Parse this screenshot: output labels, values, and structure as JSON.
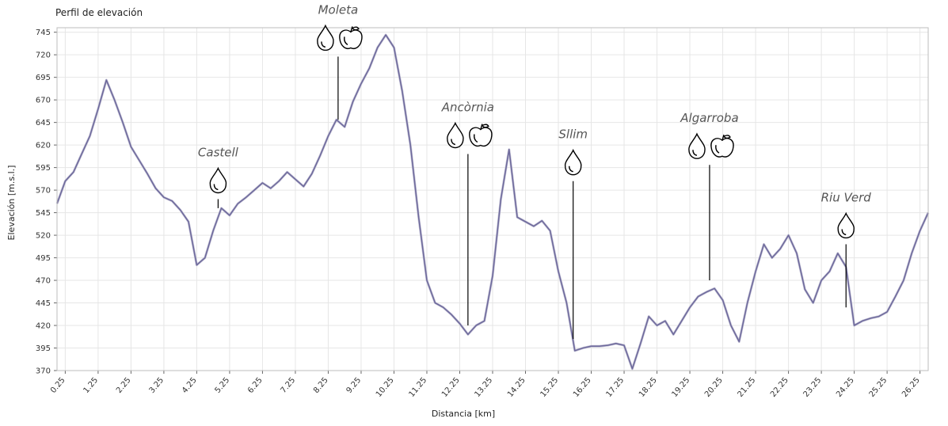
{
  "chart_data": {
    "type": "line",
    "title": "Perfil de elevación",
    "xlabel": "Distancia [km]",
    "ylabel": "Elevación [m.s.l.]",
    "xlim": [
      0,
      26.5
    ],
    "ylim": [
      370,
      750
    ],
    "grid": true,
    "yticks": [
      "370",
      "395",
      "420",
      "445",
      "470",
      "495",
      "520",
      "545",
      "570",
      "595",
      "620",
      "645",
      "670",
      "695",
      "720",
      "745"
    ],
    "xticks": [
      "0.25",
      "1.25",
      "2.25",
      "3.25",
      "4.25",
      "5.25",
      "6.25",
      "7.25",
      "8.25",
      "9.25",
      "10.25",
      "11.25",
      "12.25",
      "13.25",
      "14.25",
      "15.25",
      "16.25",
      "17.25",
      "18.25",
      "19.25",
      "20.25",
      "21.25",
      "22.25",
      "23.25",
      "24.25",
      "25.25",
      "26.25"
    ],
    "series": [
      {
        "color": "#6e6a9c",
        "x": [
          0,
          0.25,
          0.5,
          0.75,
          1.0,
          1.25,
          1.5,
          1.75,
          2.0,
          2.25,
          2.5,
          2.75,
          3.0,
          3.25,
          3.5,
          3.75,
          4.0,
          4.25,
          4.5,
          4.75,
          5.0,
          5.25,
          5.5,
          5.75,
          6.0,
          6.25,
          6.5,
          6.75,
          7.0,
          7.25,
          7.5,
          7.75,
          8.0,
          8.25,
          8.5,
          8.75,
          9.0,
          9.25,
          9.5,
          9.75,
          10.0,
          10.25,
          10.5,
          10.75,
          11.0,
          11.25,
          11.5,
          11.75,
          12.0,
          12.25,
          12.5,
          12.75,
          13.0,
          13.25,
          13.5,
          13.75,
          14.0,
          14.25,
          14.5,
          14.75,
          15.0,
          15.25,
          15.5,
          15.75,
          16.0,
          16.25,
          16.5,
          16.75,
          17.0,
          17.25,
          17.5,
          17.75,
          18.0,
          18.25,
          18.5,
          18.75,
          19.0,
          19.25,
          19.5,
          19.75,
          20.0,
          20.25,
          20.5,
          20.75,
          21.0,
          21.25,
          21.5,
          21.75,
          22.0,
          22.25,
          22.5,
          22.75,
          23.0,
          23.25,
          23.5,
          23.75,
          24.0,
          24.25,
          24.5,
          24.75,
          25.0,
          25.25,
          25.5,
          25.75,
          26.0,
          26.25,
          26.5
        ],
        "y": [
          555,
          580,
          590,
          610,
          630,
          660,
          692,
          670,
          645,
          618,
          603,
          588,
          572,
          562,
          558,
          548,
          535,
          487,
          495,
          525,
          550,
          542,
          555,
          562,
          570,
          578,
          572,
          580,
          590,
          582,
          574,
          588,
          608,
          630,
          648,
          640,
          668,
          688,
          705,
          728,
          742,
          728,
          680,
          620,
          540,
          470,
          445,
          440,
          432,
          422,
          410,
          420,
          425,
          475,
          560,
          615,
          540,
          535,
          530,
          536,
          525,
          480,
          445,
          392,
          395,
          397,
          397,
          398,
          400,
          398,
          372,
          400,
          430,
          420,
          425,
          410,
          425,
          440,
          452,
          457,
          461,
          448,
          420,
          402,
          445,
          480,
          510,
          495,
          505,
          520,
          500,
          460,
          445,
          470,
          480,
          500,
          485,
          420,
          425,
          428,
          430,
          435,
          452,
          470,
          500,
          525,
          545
        ]
      }
    ],
    "annotations": [
      {
        "label": "Castell",
        "x": 4.9,
        "line_top": 560,
        "line_bottom": 550,
        "icons": [
          "water-drop"
        ]
      },
      {
        "label": "Moleta",
        "x": 8.55,
        "line_top": 718,
        "line_bottom": 648,
        "icons": [
          "water-drop",
          "apple"
        ]
      },
      {
        "label": "Ancòrnia",
        "x": 12.5,
        "line_top": 610,
        "line_bottom": 420,
        "icons": [
          "water-drop",
          "apple"
        ]
      },
      {
        "label": "Sllim",
        "x": 15.7,
        "line_top": 580,
        "line_bottom": 405,
        "icons": [
          "water-drop"
        ]
      },
      {
        "label": "Algarroba",
        "x": 19.85,
        "line_top": 598,
        "line_bottom": 470,
        "icons": [
          "water-drop",
          "apple"
        ]
      },
      {
        "label": "Riu Verd",
        "x": 24.0,
        "line_top": 510,
        "line_bottom": 440,
        "icons": [
          "water-drop"
        ]
      }
    ]
  }
}
